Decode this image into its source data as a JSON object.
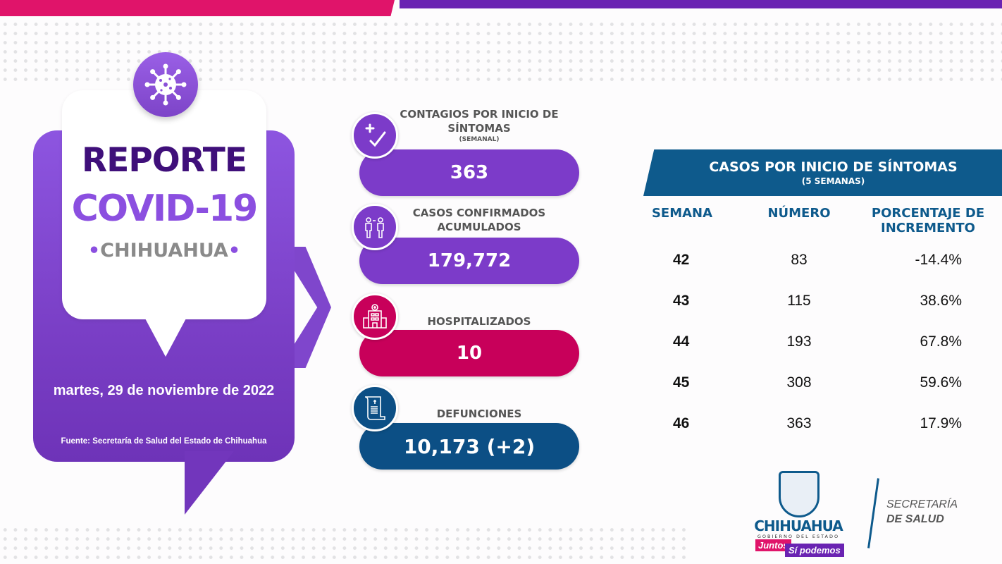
{
  "report": {
    "title": "REPORTE",
    "subtitle": "COVID-19",
    "region": "CHIHUAHUA",
    "date": "martes, 29 de noviembre de 2022",
    "source": "Fuente: Secretaría de Salud del Estado de Chihuahua",
    "icon": "virus-icon"
  },
  "stats": [
    {
      "label": "CONTAGIOS POR INICIO DE SÍNTOMAS",
      "sublabel": "(SEMANAL)",
      "value": "363",
      "color": "#7c3bc9",
      "icon": "plus-check-icon"
    },
    {
      "label": "CASOS CONFIRMADOS ACUMULADOS",
      "value": "179,772",
      "color": "#7c3bc9",
      "icon": "people-test-icon"
    },
    {
      "label": "HOSPITALIZADOS",
      "value": "10",
      "color": "#c8005a",
      "icon": "hospital-icon"
    },
    {
      "label": "DEFUNCIONES",
      "value": "10,173 (+2)",
      "color": "#0c4f85",
      "icon": "certificate-scroll-icon"
    }
  ],
  "table": {
    "title": "CASOS POR INICIO DE SÍNTOMAS",
    "subtitle": "(5 SEMANAS)",
    "headers": [
      "SEMANA",
      "NÚMERO",
      "PORCENTAJE DE INCREMENTO"
    ],
    "rows": [
      [
        "42",
        "83",
        "-14.4%"
      ],
      [
        "43",
        "115",
        "38.6%"
      ],
      [
        "44",
        "193",
        "67.8%"
      ],
      [
        "45",
        "308",
        "59.6%"
      ],
      [
        "46",
        "363",
        "17.9%"
      ]
    ]
  },
  "logos": {
    "state": "CHIHUAHUA",
    "state_sub": "GOBIERNO DEL ESTADO",
    "slogan1": "Juntos",
    "slogan2": "Sí podemos",
    "sec1": "SECRETARÍA",
    "sec2": "DE SALUD"
  }
}
